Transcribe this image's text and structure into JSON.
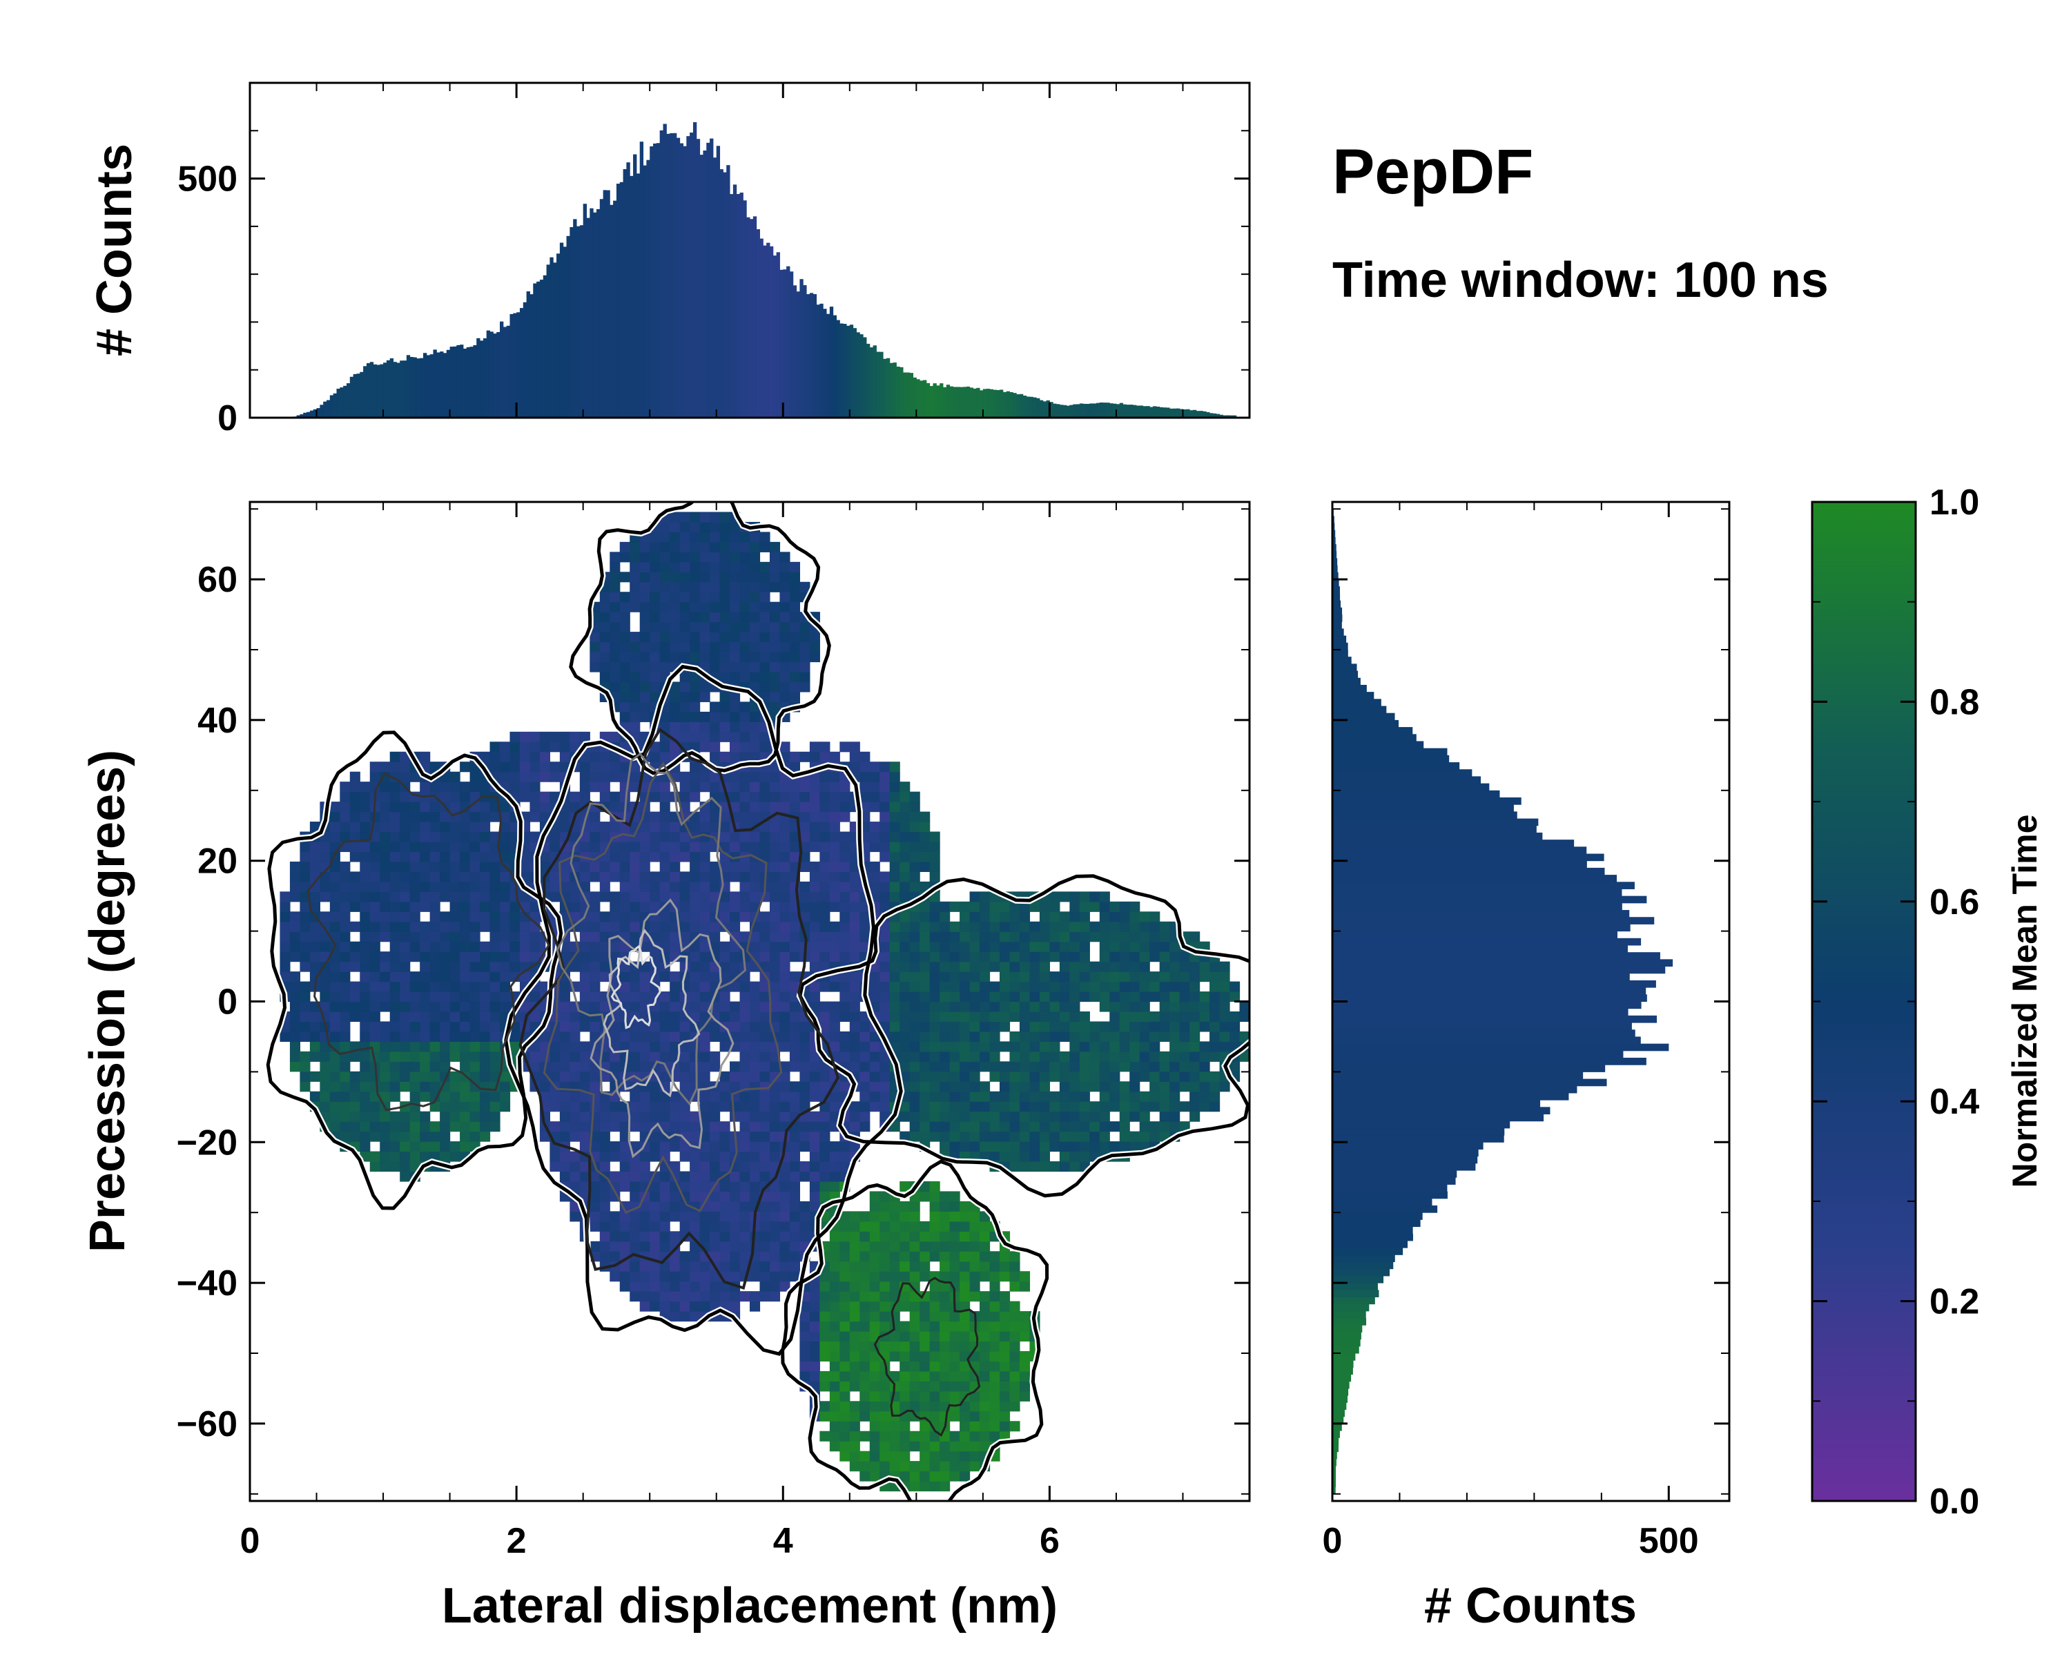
{
  "title": "PepDF",
  "subtitle": "Time window: 100 ns",
  "colormap": [
    "#6a2f9e",
    "#2b3f8c",
    "#0e3d6e",
    "#125d55",
    "#1f8a25"
  ],
  "chart_data": [
    {
      "type": "heatmap",
      "panel": "main",
      "title": "",
      "xlabel": "Lateral displacement (nm)",
      "ylabel": "Precession (degrees)",
      "xlim": [
        0,
        7.5
      ],
      "ylim": [
        -71,
        71
      ],
      "xticks": [
        0,
        2,
        4,
        6
      ],
      "yticks": [
        -60,
        -40,
        -20,
        0,
        20,
        40,
        60
      ],
      "xtick_labels": [
        "0",
        "2",
        "4",
        "6"
      ],
      "ytick_labels": [
        "−60",
        "−40",
        "−20",
        "0",
        "20",
        "40",
        "60"
      ],
      "value_label": "Normalized Mean Time",
      "regions": [
        {
          "name": "upper-left lobe",
          "x": [
            0.3,
            2.0
          ],
          "y": [
            -20,
            35
          ],
          "value": 0.42
        },
        {
          "name": "core",
          "x": [
            2.0,
            4.5
          ],
          "y": [
            -40,
            40
          ],
          "value": 0.35
        },
        {
          "name": "top protrusion",
          "x": [
            2.4,
            4.3
          ],
          "y": [
            40,
            70
          ],
          "value": 0.45
        },
        {
          "name": "right wing",
          "x": [
            4.5,
            7.4
          ],
          "y": [
            -30,
            20
          ],
          "value": 0.68
        },
        {
          "name": "lower-right lobe",
          "x": [
            4.2,
            6.0
          ],
          "y": [
            -70,
            -25
          ],
          "value": 0.92
        }
      ]
    },
    {
      "type": "bar",
      "panel": "top-marginal",
      "xlabel": "",
      "ylabel": "# Counts",
      "xlim": [
        0,
        7.5
      ],
      "ylim": [
        0,
        700
      ],
      "yticks": [
        0,
        500
      ],
      "ytick_labels": [
        "0",
        "500"
      ],
      "x": [
        0.3,
        0.5,
        0.7,
        0.9,
        1.1,
        1.3,
        1.5,
        1.7,
        1.9,
        2.1,
        2.3,
        2.5,
        2.7,
        2.9,
        3.1,
        3.3,
        3.5,
        3.7,
        3.9,
        4.1,
        4.3,
        4.5,
        4.7,
        4.9,
        5.1,
        5.3,
        5.5,
        5.7,
        5.9,
        6.1,
        6.3,
        6.5,
        6.7,
        6.9,
        7.1,
        7.3
      ],
      "values": [
        0,
        20,
        70,
        115,
        120,
        130,
        145,
        160,
        195,
        260,
        350,
        430,
        470,
        540,
        590,
        600,
        540,
        440,
        350,
        280,
        230,
        190,
        140,
        100,
        70,
        65,
        60,
        55,
        40,
        25,
        30,
        30,
        25,
        20,
        15,
        5
      ],
      "bar_color_values": [
        0.5,
        0.5,
        0.55,
        0.55,
        0.55,
        0.5,
        0.5,
        0.5,
        0.45,
        0.5,
        0.5,
        0.45,
        0.45,
        0.45,
        0.4,
        0.35,
        0.38,
        0.3,
        0.25,
        0.35,
        0.45,
        0.6,
        0.75,
        0.85,
        0.9,
        0.85,
        0.85,
        0.8,
        0.7,
        0.7,
        0.65,
        0.7,
        0.7,
        0.7,
        0.7,
        0.65
      ]
    },
    {
      "type": "bar",
      "panel": "right-marginal",
      "orientation": "horizontal",
      "xlabel": "# Counts",
      "ylabel": "",
      "xlim": [
        0,
        590
      ],
      "ylim": [
        -71,
        71
      ],
      "xticks": [
        0,
        500
      ],
      "xtick_labels": [
        "0",
        "500"
      ],
      "y": [
        69,
        65,
        61,
        57,
        53,
        49,
        45,
        41,
        37,
        33,
        29,
        25,
        21,
        17,
        13,
        9,
        5,
        1,
        -3,
        -7,
        -11,
        -15,
        -19,
        -23,
        -27,
        -31,
        -35,
        -39,
        -43,
        -47,
        -51,
        -55,
        -59,
        -63,
        -67
      ],
      "values": [
        2,
        5,
        8,
        12,
        15,
        25,
        45,
        80,
        130,
        190,
        250,
        300,
        370,
        430,
        460,
        450,
        480,
        440,
        470,
        480,
        400,
        330,
        260,
        210,
        170,
        140,
        110,
        80,
        60,
        45,
        35,
        25,
        18,
        10,
        5
      ],
      "bar_color_values": [
        0.5,
        0.5,
        0.5,
        0.5,
        0.5,
        0.5,
        0.5,
        0.5,
        0.5,
        0.48,
        0.47,
        0.46,
        0.45,
        0.44,
        0.43,
        0.42,
        0.42,
        0.42,
        0.42,
        0.44,
        0.45,
        0.45,
        0.46,
        0.46,
        0.46,
        0.48,
        0.5,
        0.6,
        0.8,
        0.88,
        0.9,
        0.9,
        0.9,
        0.9,
        0.9
      ]
    },
    {
      "type": "colorbar",
      "panel": "colorbar",
      "label": "Normalized Mean Time",
      "ylim": [
        0.0,
        1.0
      ],
      "ticks": [
        0.0,
        0.2,
        0.4,
        0.6,
        0.8,
        1.0
      ],
      "tick_labels": [
        "0.0",
        "0.2",
        "0.4",
        "0.6",
        "0.8",
        "1.0"
      ]
    }
  ]
}
